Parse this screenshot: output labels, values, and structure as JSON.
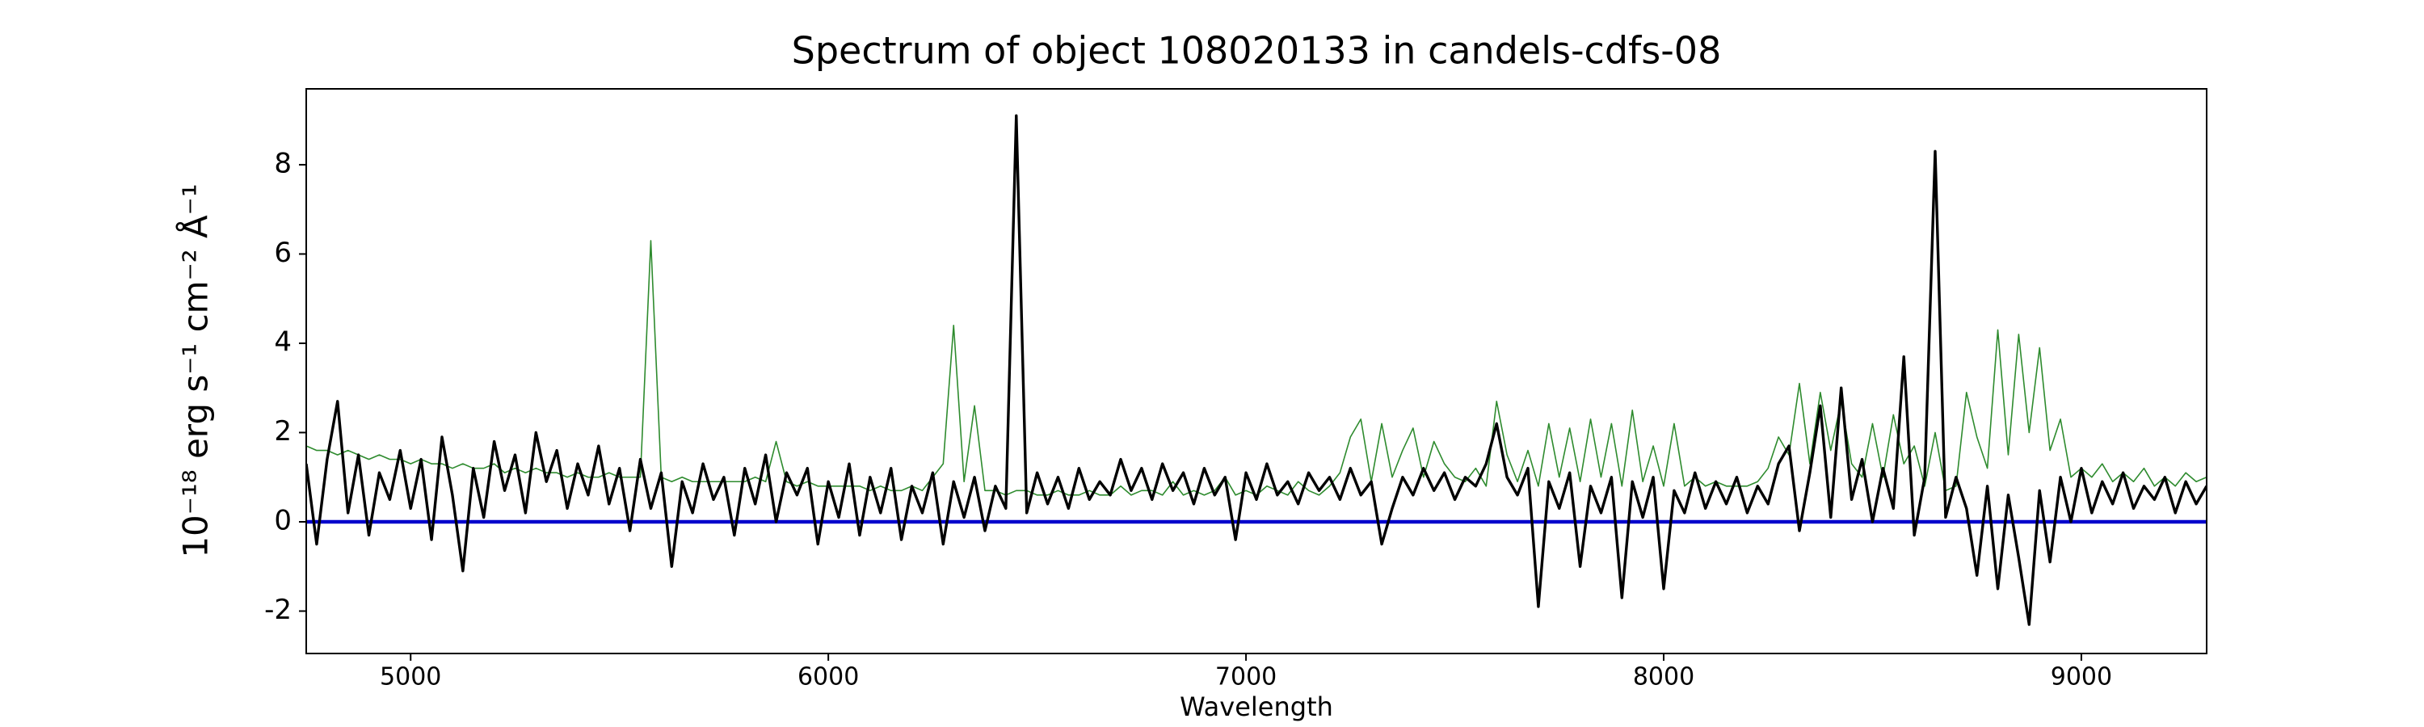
{
  "chart_data": {
    "type": "line",
    "title": "Spectrum of object 108020133 in candels-cdfs-08",
    "xlabel": "Wavelength",
    "ylabel": "10⁻¹⁸ erg s⁻¹ cm⁻² Å⁻¹",
    "xlim": [
      4750,
      9300
    ],
    "ylim": [
      -2.95,
      9.7
    ],
    "xticks": [
      5000,
      6000,
      7000,
      8000,
      9000
    ],
    "yticks": [
      -2,
      0,
      2,
      4,
      6,
      8
    ],
    "x": [
      4750,
      4775,
      4800,
      4825,
      4850,
      4875,
      4900,
      4925,
      4950,
      4975,
      5000,
      5025,
      5050,
      5075,
      5100,
      5125,
      5150,
      5175,
      5200,
      5225,
      5250,
      5275,
      5300,
      5325,
      5350,
      5375,
      5400,
      5425,
      5450,
      5475,
      5500,
      5525,
      5550,
      5575,
      5600,
      5625,
      5650,
      5675,
      5700,
      5725,
      5750,
      5775,
      5800,
      5825,
      5850,
      5875,
      5900,
      5925,
      5950,
      5975,
      6000,
      6025,
      6050,
      6075,
      6100,
      6125,
      6150,
      6175,
      6200,
      6225,
      6250,
      6275,
      6300,
      6325,
      6350,
      6375,
      6400,
      6425,
      6450,
      6475,
      6500,
      6525,
      6550,
      6575,
      6600,
      6625,
      6650,
      6675,
      6700,
      6725,
      6750,
      6775,
      6800,
      6825,
      6850,
      6875,
      6900,
      6925,
      6950,
      6975,
      7000,
      7025,
      7050,
      7075,
      7100,
      7125,
      7150,
      7175,
      7200,
      7225,
      7250,
      7275,
      7300,
      7325,
      7350,
      7375,
      7400,
      7425,
      7450,
      7475,
      7500,
      7525,
      7550,
      7575,
      7600,
      7625,
      7650,
      7675,
      7700,
      7725,
      7750,
      7775,
      7800,
      7825,
      7850,
      7875,
      7900,
      7925,
      7950,
      7975,
      8000,
      8025,
      8050,
      8075,
      8100,
      8125,
      8150,
      8175,
      8200,
      8225,
      8250,
      8275,
      8300,
      8325,
      8350,
      8375,
      8400,
      8425,
      8450,
      8475,
      8500,
      8525,
      8550,
      8575,
      8600,
      8625,
      8650,
      8675,
      8700,
      8725,
      8750,
      8775,
      8800,
      8825,
      8850,
      8875,
      8900,
      8925,
      8950,
      8975,
      9000,
      9025,
      9050,
      9075,
      9100,
      9125,
      9150,
      9175,
      9200,
      9225,
      9250,
      9275,
      9300
    ],
    "series": [
      {
        "color": "#2e8b2e",
        "width": 1.6,
        "values": [
          1.7,
          1.6,
          1.6,
          1.5,
          1.6,
          1.5,
          1.4,
          1.5,
          1.4,
          1.4,
          1.3,
          1.4,
          1.3,
          1.3,
          1.2,
          1.3,
          1.2,
          1.2,
          1.3,
          1.1,
          1.2,
          1.1,
          1.2,
          1.1,
          1.1,
          1.0,
          1.1,
          1.0,
          1.0,
          1.1,
          1.0,
          1.0,
          1.0,
          6.3,
          1.0,
          0.9,
          1.0,
          0.9,
          0.9,
          0.9,
          0.9,
          0.9,
          0.9,
          1.0,
          0.9,
          1.8,
          0.9,
          0.8,
          0.9,
          0.8,
          0.8,
          0.8,
          0.8,
          0.8,
          0.7,
          0.8,
          0.7,
          0.7,
          0.8,
          0.7,
          1.0,
          1.3,
          4.4,
          0.9,
          2.6,
          0.7,
          0.7,
          0.6,
          0.7,
          0.7,
          0.6,
          0.6,
          0.7,
          0.6,
          0.6,
          0.7,
          0.6,
          0.6,
          0.8,
          0.6,
          0.7,
          0.7,
          0.6,
          0.9,
          0.6,
          0.7,
          0.6,
          0.7,
          1.0,
          0.6,
          0.7,
          0.6,
          0.8,
          0.7,
          0.6,
          0.9,
          0.7,
          0.6,
          0.8,
          1.1,
          1.9,
          2.3,
          0.9,
          2.2,
          1.0,
          1.6,
          2.1,
          1.0,
          1.8,
          1.3,
          1.0,
          0.9,
          1.2,
          0.8,
          2.7,
          1.5,
          0.9,
          1.6,
          0.8,
          2.2,
          1.0,
          2.1,
          0.9,
          2.3,
          1.0,
          2.2,
          0.8,
          2.5,
          0.9,
          1.7,
          0.8,
          2.2,
          0.8,
          1.0,
          0.8,
          0.9,
          0.8,
          0.8,
          0.8,
          0.9,
          1.2,
          1.9,
          1.5,
          3.1,
          1.3,
          2.9,
          1.6,
          2.7,
          1.3,
          1.0,
          2.2,
          1.0,
          2.4,
          1.3,
          1.7,
          0.8,
          2.0,
          0.7,
          0.8,
          2.9,
          1.9,
          1.2,
          4.3,
          1.5,
          4.2,
          2.0,
          3.9,
          1.6,
          2.3,
          1.0,
          1.2,
          1.0,
          1.3,
          0.9,
          1.1,
          0.9,
          1.2,
          0.8,
          1.0,
          0.8,
          1.1,
          0.9,
          1.0
        ]
      },
      {
        "color": "#0000cc",
        "width": 4.5,
        "x": [
          4750,
          9300
        ],
        "values": [
          0,
          0
        ]
      },
      {
        "color": "#000000",
        "width": 3.4,
        "values": [
          1.3,
          -0.5,
          1.4,
          2.7,
          0.2,
          1.5,
          -0.3,
          1.1,
          0.5,
          1.6,
          0.3,
          1.4,
          -0.4,
          1.9,
          0.6,
          -1.1,
          1.2,
          0.1,
          1.8,
          0.7,
          1.5,
          0.2,
          2.0,
          0.9,
          1.6,
          0.3,
          1.3,
          0.6,
          1.7,
          0.4,
          1.2,
          -0.2,
          1.4,
          0.3,
          1.1,
          -1.0,
          0.9,
          0.2,
          1.3,
          0.5,
          1.0,
          -0.3,
          1.2,
          0.4,
          1.5,
          0.0,
          1.1,
          0.6,
          1.2,
          -0.5,
          0.9,
          0.1,
          1.3,
          -0.3,
          1.0,
          0.2,
          1.2,
          -0.4,
          0.8,
          0.2,
          1.1,
          -0.5,
          0.9,
          0.1,
          1.0,
          -0.2,
          0.8,
          0.3,
          9.1,
          0.2,
          1.1,
          0.4,
          1.0,
          0.3,
          1.2,
          0.5,
          0.9,
          0.6,
          1.4,
          0.7,
          1.2,
          0.5,
          1.3,
          0.7,
          1.1,
          0.4,
          1.2,
          0.6,
          1.0,
          -0.4,
          1.1,
          0.5,
          1.3,
          0.6,
          0.9,
          0.4,
          1.1,
          0.7,
          1.0,
          0.5,
          1.2,
          0.6,
          0.9,
          -0.5,
          0.3,
          1.0,
          0.6,
          1.2,
          0.7,
          1.1,
          0.5,
          1.0,
          0.8,
          1.3,
          2.2,
          1.0,
          0.6,
          1.2,
          -1.9,
          0.9,
          0.3,
          1.1,
          -1.0,
          0.8,
          0.2,
          1.0,
          -1.7,
          0.9,
          0.1,
          1.0,
          -1.5,
          0.7,
          0.2,
          1.1,
          0.3,
          0.9,
          0.4,
          1.0,
          0.2,
          0.8,
          0.4,
          1.3,
          1.7,
          -0.2,
          1.1,
          2.6,
          0.1,
          3.0,
          0.5,
          1.4,
          0.0,
          1.2,
          0.3,
          3.7,
          -0.3,
          1.0,
          8.3,
          0.1,
          1.0,
          0.3,
          -1.2,
          0.8,
          -1.5,
          0.6,
          -0.8,
          -2.3,
          0.7,
          -0.9,
          1.0,
          0.0,
          1.2,
          0.2,
          0.9,
          0.4,
          1.1,
          0.3,
          0.8,
          0.5,
          1.0,
          0.2,
          0.9,
          0.4,
          0.8
        ]
      }
    ]
  }
}
